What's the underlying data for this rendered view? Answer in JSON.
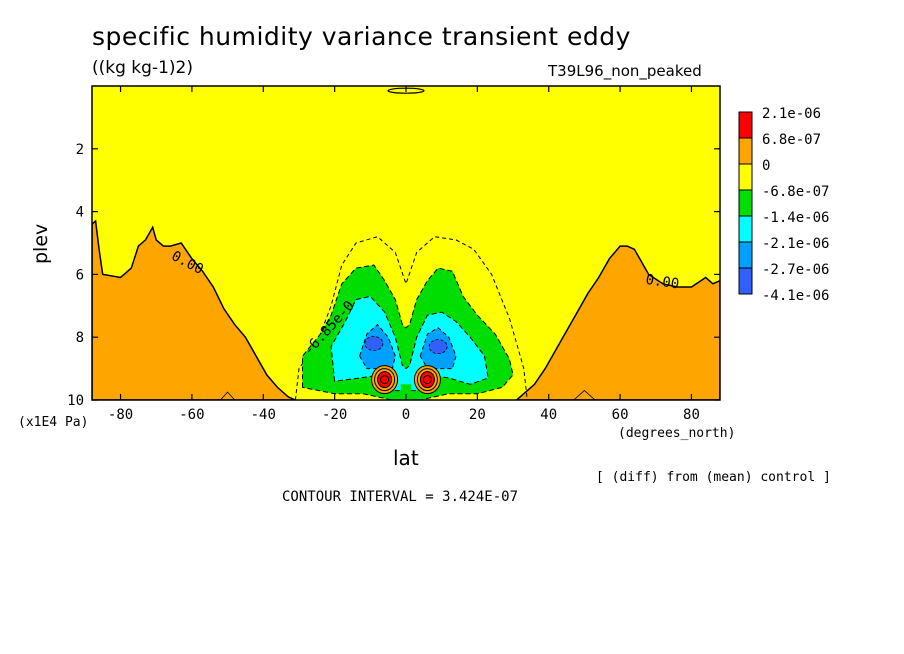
{
  "chart_data": {
    "type": "contour",
    "title": "specific humidity variance transient eddy",
    "units": "((kg kg-1)2)",
    "run_label": "T39L96_non_peaked",
    "xlabel": "lat",
    "xunits": "(degrees_north)",
    "ylabel": "plev",
    "yunits": "(x1E4 Pa)",
    "xlim": [
      -88,
      88
    ],
    "ylim": [
      10,
      0
    ],
    "x_ticks": [
      "-80",
      "-60",
      "-40",
      "-20",
      "0",
      "20",
      "40",
      "60",
      "80"
    ],
    "y_ticks": [
      "2",
      "4",
      "6",
      "8",
      "10"
    ],
    "legend_levels": [
      "2.1e-06",
      "6.8e-07",
      "0",
      "-6.8e-07",
      "-1.4e-06",
      "-2.1e-06",
      "-2.7e-06",
      "-4.1e-06"
    ],
    "legend_colors": [
      "#ff0000",
      "#ffa500",
      "#ffff00",
      "#00dd00",
      "#00ffff",
      "#00a0ff",
      "#3060ff"
    ],
    "contour_labels": [
      "0.00",
      "0.00",
      "-6.85e-0"
    ],
    "note": "[ (diff) from (mean) control ]",
    "contour_interval": "CONTOUR INTERVAL = 3.424E-07",
    "colors": {
      "orange": "#ffa500",
      "yellow": "#ffff00",
      "green": "#00dd00",
      "cyan": "#00ffff",
      "blue": "#00a0ff",
      "darkblue": "#3060ff",
      "red": "#ff0000"
    }
  }
}
